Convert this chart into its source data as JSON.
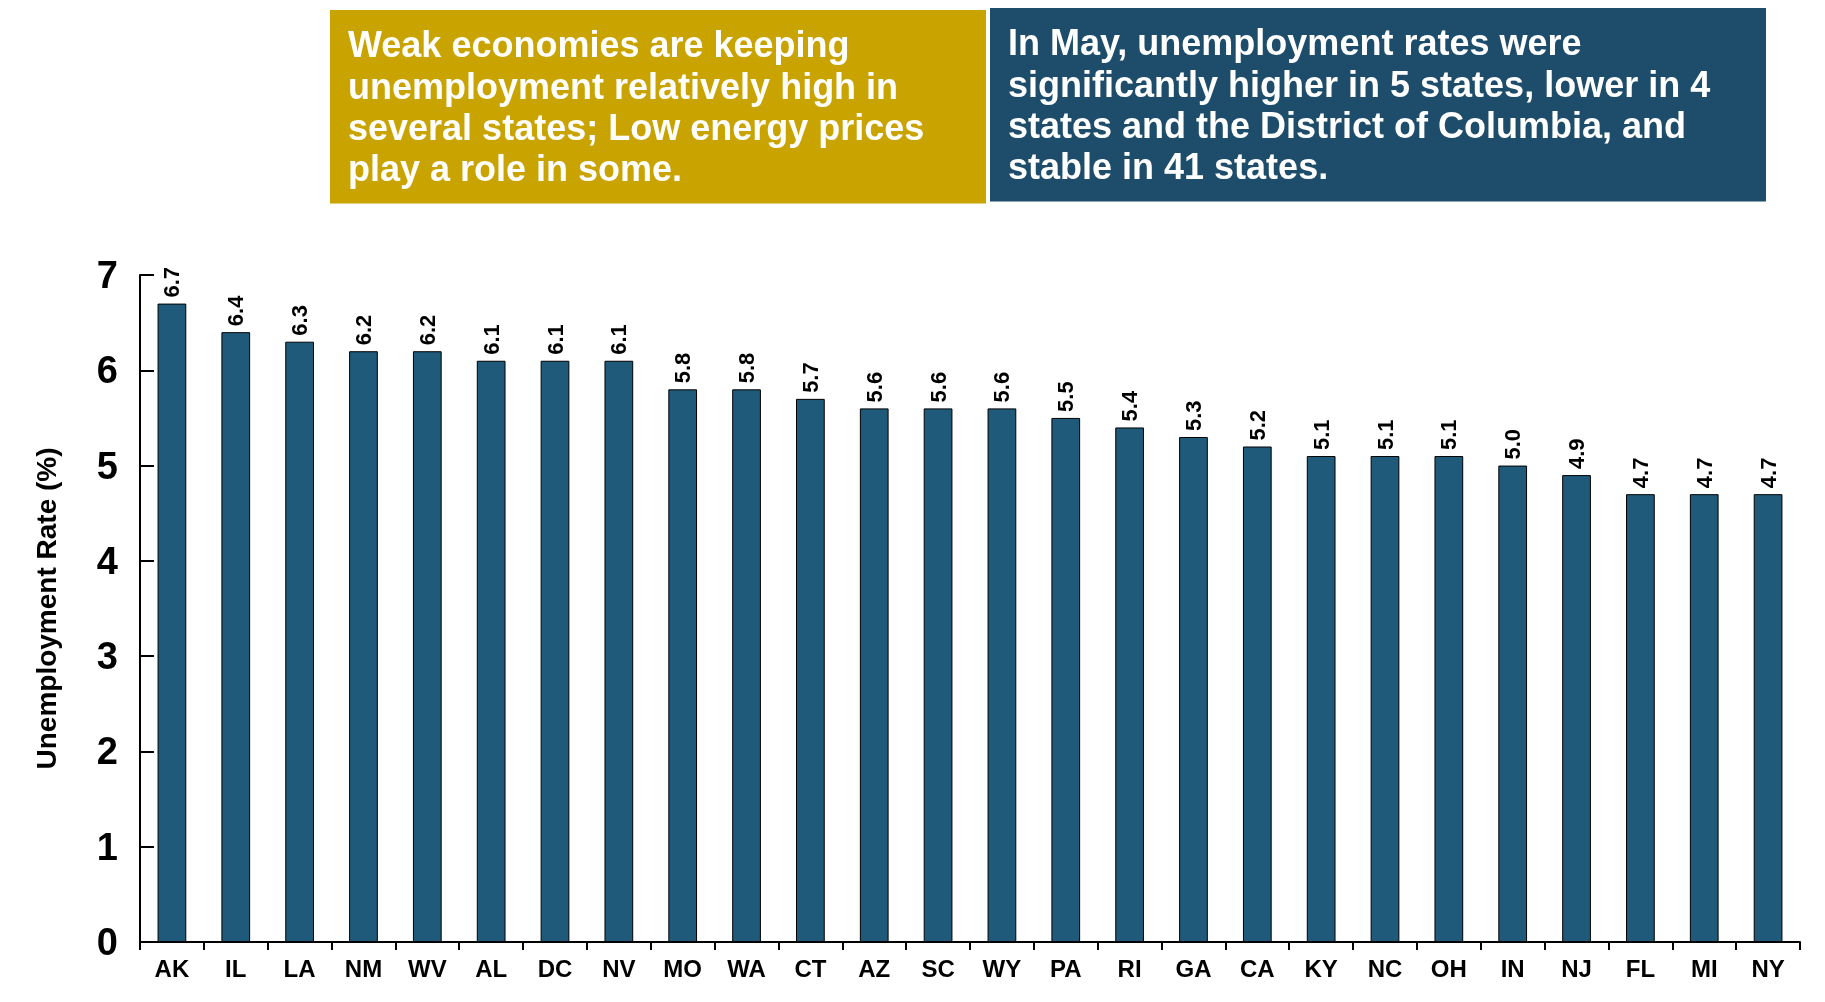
{
  "chart_data": {
    "type": "bar",
    "ylabel": "Unemployment Rate (%)",
    "categories": [
      "AK",
      "IL",
      "LA",
      "NM",
      "WV",
      "AL",
      "DC",
      "NV",
      "MO",
      "WA",
      "CT",
      "AZ",
      "SC",
      "WY",
      "PA",
      "RI",
      "GA",
      "CA",
      "KY",
      "NC",
      "OH",
      "IN",
      "NJ",
      "FL",
      "MI",
      "NY"
    ],
    "values": [
      6.7,
      6.4,
      6.3,
      6.2,
      6.2,
      6.1,
      6.1,
      6.1,
      5.8,
      5.8,
      5.7,
      5.6,
      5.6,
      5.6,
      5.5,
      5.4,
      5.3,
      5.2,
      5.1,
      5.1,
      5.1,
      5.0,
      4.9,
      4.7,
      4.7,
      4.7
    ],
    "value_labels": [
      "6.7",
      "6.4",
      "6.3",
      "6.2",
      "6.2",
      "6.1",
      "6.1",
      "6.1",
      "5.8",
      "5.8",
      "5.7",
      "5.6",
      "5.6",
      "5.6",
      "5.5",
      "5.4",
      "5.3",
      "5.2",
      "5.1",
      "5.1",
      "5.1",
      "5.0",
      "4.9",
      "4.7",
      "4.7",
      "4.7"
    ],
    "color": "#205a7a",
    "ylim": [
      0,
      7
    ],
    "yticks": [
      0,
      1,
      2,
      3,
      4,
      5,
      6,
      7
    ],
    "grid": false,
    "annotations": [
      "In May, unemployment rates were significantly higher in 5 states, lower in 4 states and the District of Columbia, and stable in 41 states.",
      "Weak economies are keeping unemployment relatively high in several states; Low energy prices play a role in some."
    ]
  }
}
